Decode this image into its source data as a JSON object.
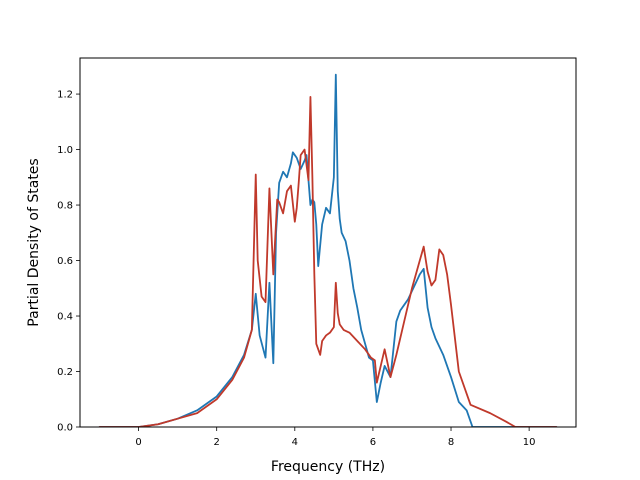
{
  "chart_data": {
    "type": "line",
    "title": "",
    "xlabel": "Frequency (THz)",
    "ylabel": "Partial Density of States",
    "xlim": [
      -1.5,
      11.2
    ],
    "ylim": [
      0,
      1.33
    ],
    "xticks": [
      0,
      2,
      4,
      6,
      8,
      10
    ],
    "yticks": [
      0.0,
      0.2,
      0.4,
      0.6,
      0.8,
      1.0,
      1.2
    ],
    "xtick_labels": [
      "0",
      "2",
      "4",
      "6",
      "8",
      "10"
    ],
    "ytick_labels": [
      "0.0",
      "0.2",
      "0.4",
      "0.6",
      "0.8",
      "1.0",
      "1.2"
    ],
    "grid": false,
    "colors": {
      "series_1": "#1f77b4",
      "series_2": "#c0392b"
    },
    "series": [
      {
        "color": "#1f77b4",
        "x": [
          -1.0,
          0.0,
          0.5,
          1.0,
          1.5,
          2.0,
          2.4,
          2.7,
          2.9,
          3.0,
          3.1,
          3.25,
          3.35,
          3.45,
          3.52,
          3.6,
          3.7,
          3.8,
          3.9,
          3.95,
          4.05,
          4.15,
          4.25,
          4.3,
          4.4,
          4.45,
          4.5,
          4.55,
          4.6,
          4.7,
          4.8,
          4.9,
          5.0,
          5.05,
          5.1,
          5.15,
          5.2,
          5.3,
          5.4,
          5.5,
          5.6,
          5.7,
          5.8,
          5.9,
          6.0,
          6.1,
          6.2,
          6.3,
          6.45,
          6.6,
          6.7,
          6.8,
          6.9,
          7.0,
          7.1,
          7.2,
          7.3,
          7.4,
          7.5,
          7.6,
          7.8,
          8.0,
          8.2,
          8.4,
          8.55,
          10.7
        ],
        "y": [
          0.0,
          0.0,
          0.01,
          0.03,
          0.06,
          0.11,
          0.18,
          0.26,
          0.35,
          0.48,
          0.33,
          0.25,
          0.52,
          0.23,
          0.7,
          0.88,
          0.92,
          0.9,
          0.95,
          0.99,
          0.97,
          0.93,
          0.96,
          0.98,
          0.8,
          0.82,
          0.81,
          0.73,
          0.58,
          0.73,
          0.79,
          0.77,
          0.9,
          1.27,
          0.85,
          0.75,
          0.7,
          0.67,
          0.6,
          0.5,
          0.43,
          0.35,
          0.3,
          0.25,
          0.24,
          0.09,
          0.16,
          0.22,
          0.18,
          0.38,
          0.42,
          0.44,
          0.46,
          0.49,
          0.52,
          0.55,
          0.57,
          0.43,
          0.36,
          0.32,
          0.26,
          0.18,
          0.09,
          0.06,
          0.0,
          0.0
        ]
      },
      {
        "color": "#c0392b",
        "x": [
          -1.0,
          0.0,
          0.5,
          1.0,
          1.5,
          2.0,
          2.4,
          2.7,
          2.9,
          3.0,
          3.05,
          3.15,
          3.25,
          3.35,
          3.45,
          3.55,
          3.6,
          3.7,
          3.8,
          3.9,
          4.0,
          4.05,
          4.1,
          4.15,
          4.25,
          4.35,
          4.4,
          4.45,
          4.5,
          4.55,
          4.65,
          4.7,
          4.75,
          4.8,
          4.9,
          5.0,
          5.05,
          5.1,
          5.15,
          5.25,
          5.4,
          5.6,
          5.8,
          5.95,
          6.05,
          6.1,
          6.2,
          6.3,
          6.45,
          6.6,
          6.8,
          7.0,
          7.2,
          7.3,
          7.4,
          7.5,
          7.6,
          7.7,
          7.8,
          7.9,
          8.0,
          8.2,
          8.5,
          9.0,
          9.4,
          9.65,
          10.7
        ],
        "y": [
          0.0,
          0.0,
          0.01,
          0.03,
          0.05,
          0.1,
          0.17,
          0.25,
          0.35,
          0.91,
          0.6,
          0.47,
          0.45,
          0.86,
          0.55,
          0.82,
          0.81,
          0.77,
          0.85,
          0.87,
          0.74,
          0.79,
          0.88,
          0.98,
          1.0,
          0.89,
          1.19,
          0.9,
          0.55,
          0.3,
          0.26,
          0.31,
          0.32,
          0.33,
          0.34,
          0.36,
          0.52,
          0.41,
          0.37,
          0.35,
          0.34,
          0.31,
          0.28,
          0.25,
          0.24,
          0.16,
          0.22,
          0.28,
          0.18,
          0.26,
          0.38,
          0.5,
          0.6,
          0.65,
          0.56,
          0.51,
          0.53,
          0.64,
          0.62,
          0.55,
          0.44,
          0.2,
          0.08,
          0.05,
          0.02,
          0.0,
          0.0
        ]
      }
    ]
  }
}
